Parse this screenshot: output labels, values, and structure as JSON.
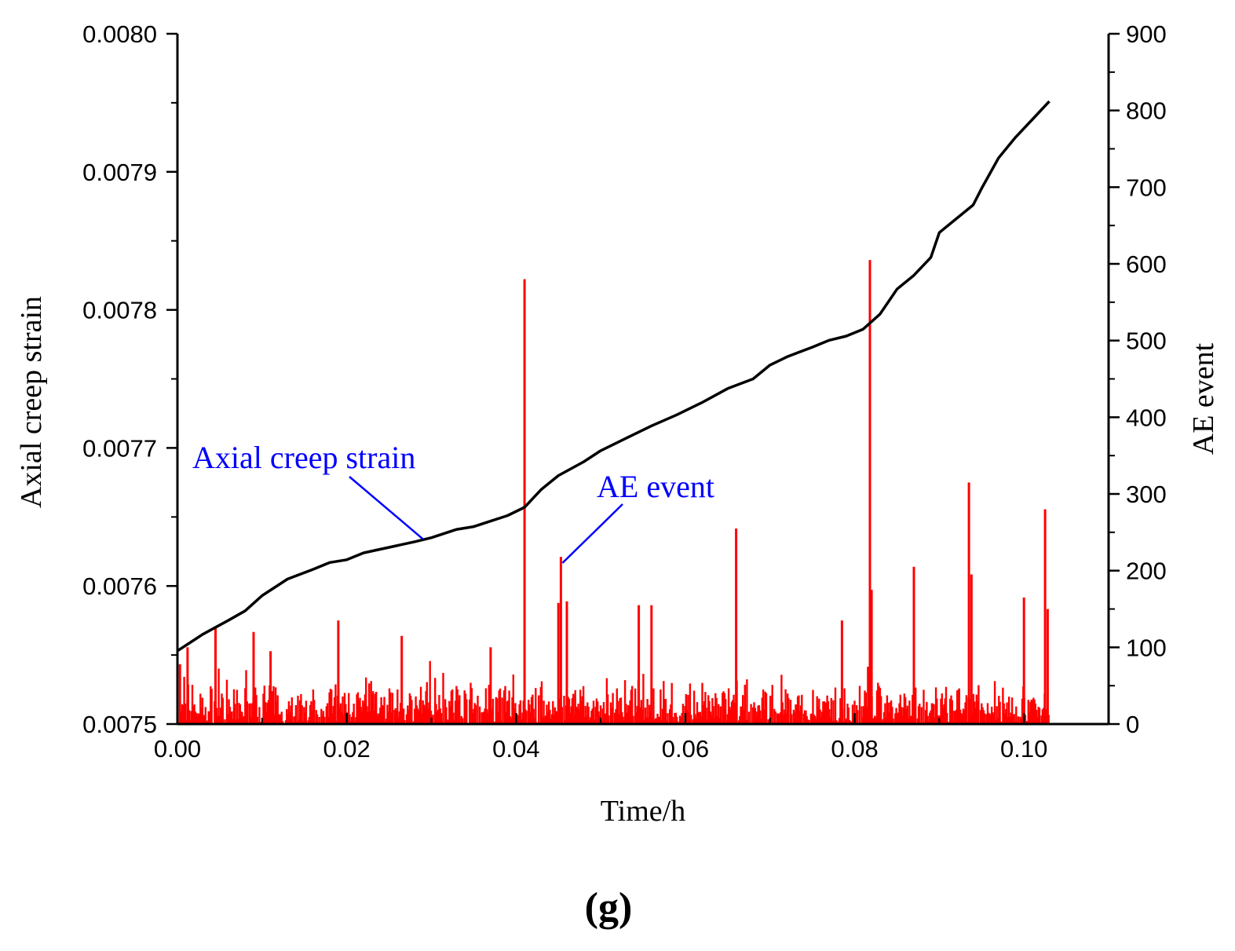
{
  "chart_data": {
    "type": "line",
    "panel_label": "(g)",
    "xlabel": "Time/h",
    "ylabel_left": "Axial creep strain",
    "ylabel_right": "AE event",
    "xlim": [
      0.0,
      0.11
    ],
    "ylim_left": [
      0.0075,
      0.008
    ],
    "ylim_right": [
      0,
      900
    ],
    "x_ticks": [
      "0.00",
      "0.02",
      "0.04",
      "0.06",
      "0.08",
      "0.10"
    ],
    "y_left_ticks": [
      "0.0075",
      "0.0076",
      "0.0077",
      "0.0078",
      "0.0079",
      "0.0080"
    ],
    "y_right_ticks": [
      "0",
      "100",
      "200",
      "300",
      "400",
      "500",
      "600",
      "700",
      "800",
      "900"
    ],
    "grid": false,
    "series": [
      {
        "name": "Axial creep strain",
        "axis": "left",
        "color": "#000000",
        "x": [
          0.0,
          0.003,
          0.006,
          0.008,
          0.01,
          0.013,
          0.016,
          0.018,
          0.02,
          0.022,
          0.025,
          0.028,
          0.03,
          0.033,
          0.035,
          0.037,
          0.039,
          0.041,
          0.043,
          0.045,
          0.048,
          0.05,
          0.053,
          0.056,
          0.059,
          0.062,
          0.065,
          0.068,
          0.07,
          0.072,
          0.075,
          0.077,
          0.079,
          0.081,
          0.083,
          0.085,
          0.087,
          0.089,
          0.09,
          0.092,
          0.094,
          0.095,
          0.097,
          0.099,
          0.101,
          0.103
        ],
        "values": [
          0.007553,
          0.007565,
          0.007575,
          0.007582,
          0.007593,
          0.007605,
          0.007612,
          0.007617,
          0.007619,
          0.007624,
          0.007628,
          0.007632,
          0.007635,
          0.007641,
          0.007643,
          0.007647,
          0.007651,
          0.007657,
          0.00767,
          0.00768,
          0.00769,
          0.007698,
          0.007707,
          0.007716,
          0.007724,
          0.007733,
          0.007743,
          0.00775,
          0.00776,
          0.007766,
          0.007773,
          0.007778,
          0.007781,
          0.007786,
          0.007797,
          0.007815,
          0.007825,
          0.007838,
          0.007856,
          0.007866,
          0.007876,
          0.007888,
          0.00791,
          0.007925,
          0.007938,
          0.007951
        ]
      },
      {
        "name": "AE event",
        "axis": "right",
        "type": "bar",
        "color": "#ff0000",
        "peaks": [
          {
            "x": 0.0003,
            "value": 78
          },
          {
            "x": 0.0012,
            "value": 100
          },
          {
            "x": 0.0045,
            "value": 125
          },
          {
            "x": 0.009,
            "value": 120
          },
          {
            "x": 0.011,
            "value": 95
          },
          {
            "x": 0.019,
            "value": 135
          },
          {
            "x": 0.0265,
            "value": 115
          },
          {
            "x": 0.037,
            "value": 100
          },
          {
            "x": 0.041,
            "value": 580
          },
          {
            "x": 0.045,
            "value": 158
          },
          {
            "x": 0.0453,
            "value": 218
          },
          {
            "x": 0.046,
            "value": 160
          },
          {
            "x": 0.0545,
            "value": 155
          },
          {
            "x": 0.056,
            "value": 155
          },
          {
            "x": 0.066,
            "value": 255
          },
          {
            "x": 0.0785,
            "value": 135
          },
          {
            "x": 0.0818,
            "value": 605
          },
          {
            "x": 0.082,
            "value": 175
          },
          {
            "x": 0.087,
            "value": 205
          },
          {
            "x": 0.0935,
            "value": 315
          },
          {
            "x": 0.0938,
            "value": 195
          },
          {
            "x": 0.1,
            "value": 165
          },
          {
            "x": 0.1025,
            "value": 280
          },
          {
            "x": 0.1028,
            "value": 150
          }
        ],
        "baseline_range": [
          0,
          60
        ]
      }
    ],
    "annotations": [
      {
        "text": "Axial creep strain",
        "points_to": "Axial creep strain",
        "at_x": 0.029
      },
      {
        "text": "AE event",
        "points_to": "AE event",
        "at_x": 0.0453
      }
    ]
  }
}
